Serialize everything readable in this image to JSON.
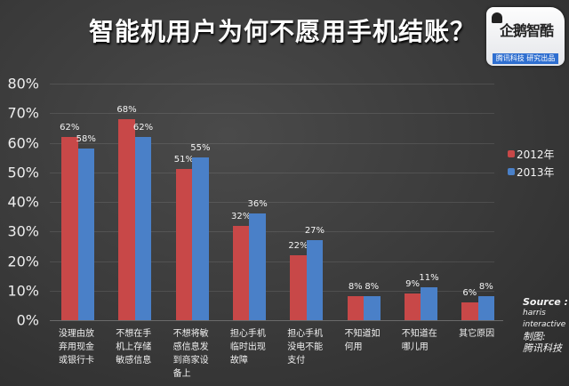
{
  "title": "智能机用户为何不愿用手机结账？",
  "logo": {
    "brand": "企鹅智酷",
    "banner": "腾讯科技 研究出品"
  },
  "legend": [
    {
      "label": "2012年",
      "color": "#c84848"
    },
    {
      "label": "2013年",
      "color": "#4a80c8"
    }
  ],
  "source": {
    "line1": "Source :",
    "line2": "harris",
    "line3": "interactive",
    "line4": "制图:",
    "line5": "腾讯科技"
  },
  "yticks": [
    "0%",
    "10%",
    "20%",
    "30%",
    "40%",
    "50%",
    "60%",
    "70%",
    "80%"
  ],
  "chart_data": {
    "type": "bar",
    "title": "智能机用户为何不愿用手机结账？",
    "xlabel": "",
    "ylabel": "",
    "ylim": [
      0,
      80
    ],
    "ytick_labels": [
      "0%",
      "10%",
      "20%",
      "30%",
      "40%",
      "50%",
      "60%",
      "70%",
      "80%"
    ],
    "grid": true,
    "legend_position": "right",
    "categories": [
      "没理由放弃用现金或银行卡",
      "不想在手机上存储敏感信息",
      "不想将敏感信息发到商家设备上",
      "担心手机临时出现故障",
      "担心手机没电不能支付",
      "不知道如何用",
      "不知道在哪儿用",
      "其它原因"
    ],
    "category_lines": [
      [
        "没理由放",
        "弃用现金",
        "或银行卡"
      ],
      [
        "不想在手",
        "机上存储",
        "敏感信息"
      ],
      [
        "不想将敏",
        "感信息发",
        "到商家设",
        "备上"
      ],
      [
        "担心手机",
        "临时出现",
        "故障"
      ],
      [
        "担心手机",
        "没电不能",
        "支付"
      ],
      [
        "不知道如",
        "何用"
      ],
      [
        "不知道在",
        "哪儿用"
      ],
      [
        "其它原因"
      ]
    ],
    "series": [
      {
        "name": "2012年",
        "color": "#c84848",
        "values": [
          62,
          68,
          51,
          32,
          22,
          8,
          9,
          6
        ]
      },
      {
        "name": "2013年",
        "color": "#4a80c8",
        "values": [
          58,
          62,
          55,
          36,
          27,
          8,
          11,
          8
        ]
      }
    ],
    "annotations": [
      "Source : harris interactive",
      "制图: 腾讯科技"
    ]
  }
}
